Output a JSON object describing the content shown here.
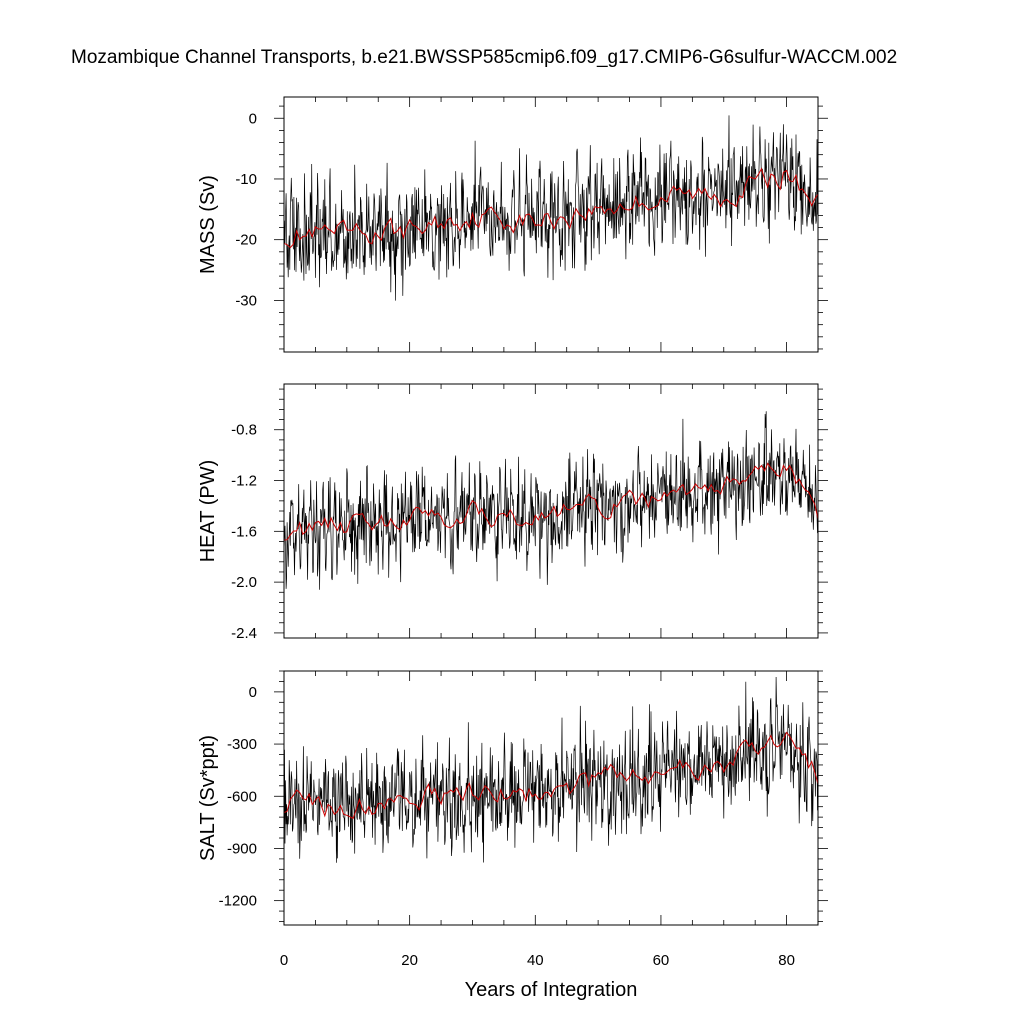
{
  "title": "Mozambique Channel Transports, b.e21.BWSSP585cmip6.f09_g17.CMIP6-G6sulfur-WACCM.002",
  "colors": {
    "raw": "#000000",
    "smoothed": "#cc0000",
    "axes": "#000000"
  },
  "chart_data": [
    {
      "type": "line",
      "ylabel": "MASS (Sv)",
      "xlim": [
        0,
        85
      ],
      "ylim": [
        -38.5,
        3.5
      ],
      "xticks": [
        0,
        20,
        40,
        60,
        80
      ],
      "yticks": [
        0,
        -10,
        -20,
        -30
      ],
      "ytick_labels": [
        "0",
        "-10",
        "-20",
        "-30"
      ],
      "grid": false,
      "series": [
        {
          "style": "raw monthly",
          "base": [
            [
              0,
              -19
            ],
            [
              10,
              -19.5
            ],
            [
              20,
              -18.5
            ],
            [
              30,
              -16
            ],
            [
              40,
              -17
            ],
            [
              50,
              -15
            ],
            [
              60,
              -13
            ],
            [
              70,
              -12.5
            ],
            [
              80,
              -9
            ],
            [
              85,
              -14
            ]
          ],
          "amplitude": 7.5
        },
        {
          "style": "smoothed",
          "base": [
            [
              0,
              -19
            ],
            [
              10,
              -19.5
            ],
            [
              20,
              -18.5
            ],
            [
              30,
              -16
            ],
            [
              40,
              -17
            ],
            [
              50,
              -15
            ],
            [
              60,
              -13
            ],
            [
              70,
              -12.5
            ],
            [
              80,
              -9
            ],
            [
              85,
              -14
            ]
          ],
          "amplitude": 1.6
        }
      ]
    },
    {
      "type": "line",
      "ylabel": "HEAT (PW)",
      "xlim": [
        0,
        85
      ],
      "ylim": [
        -2.44,
        -0.44
      ],
      "xticks": [
        0,
        20,
        40,
        60,
        80
      ],
      "yticks": [
        -0.8,
        -1.2,
        -1.6,
        -2.0,
        -2.4
      ],
      "ytick_labels": [
        "-0.8",
        "-1.2",
        "-1.6",
        "-2.0",
        "-2.4"
      ],
      "grid": false,
      "series": [
        {
          "style": "raw monthly",
          "base": [
            [
              0,
              -1.6
            ],
            [
              10,
              -1.55
            ],
            [
              20,
              -1.5
            ],
            [
              30,
              -1.45
            ],
            [
              40,
              -1.5
            ],
            [
              50,
              -1.4
            ],
            [
              60,
              -1.35
            ],
            [
              70,
              -1.25
            ],
            [
              80,
              -1.1
            ],
            [
              85,
              -1.45
            ]
          ],
          "amplitude": 0.33
        },
        {
          "style": "smoothed",
          "base": [
            [
              0,
              -1.6
            ],
            [
              10,
              -1.55
            ],
            [
              20,
              -1.5
            ],
            [
              30,
              -1.45
            ],
            [
              40,
              -1.5
            ],
            [
              50,
              -1.4
            ],
            [
              60,
              -1.35
            ],
            [
              70,
              -1.25
            ],
            [
              80,
              -1.1
            ],
            [
              85,
              -1.45
            ]
          ],
          "amplitude": 0.07
        }
      ]
    },
    {
      "type": "line",
      "ylabel": "SALT (Sv*ppt)",
      "xlim": [
        0,
        85
      ],
      "xlabel": "Years of Integration",
      "ylim": [
        -1340,
        120
      ],
      "xticks": [
        0,
        20,
        40,
        60,
        80
      ],
      "xtick_labels": [
        "0",
        "20",
        "40",
        "60",
        "80"
      ],
      "yticks": [
        0,
        -300,
        -600,
        -900,
        -1200
      ],
      "ytick_labels": [
        "0",
        "-300",
        "-600",
        "-900",
        "-1200"
      ],
      "grid": false,
      "series": [
        {
          "style": "raw monthly",
          "base": [
            [
              0,
              -640
            ],
            [
              10,
              -660
            ],
            [
              20,
              -620
            ],
            [
              30,
              -560
            ],
            [
              40,
              -580
            ],
            [
              50,
              -510
            ],
            [
              60,
              -450
            ],
            [
              70,
              -420
            ],
            [
              80,
              -300
            ],
            [
              85,
              -480
            ]
          ],
          "amplitude": 260
        },
        {
          "style": "smoothed",
          "base": [
            [
              0,
              -640
            ],
            [
              10,
              -660
            ],
            [
              20,
              -620
            ],
            [
              30,
              -560
            ],
            [
              40,
              -580
            ],
            [
              50,
              -510
            ],
            [
              60,
              -450
            ],
            [
              70,
              -420
            ],
            [
              80,
              -300
            ],
            [
              85,
              -480
            ]
          ],
          "amplitude": 55
        }
      ]
    }
  ]
}
